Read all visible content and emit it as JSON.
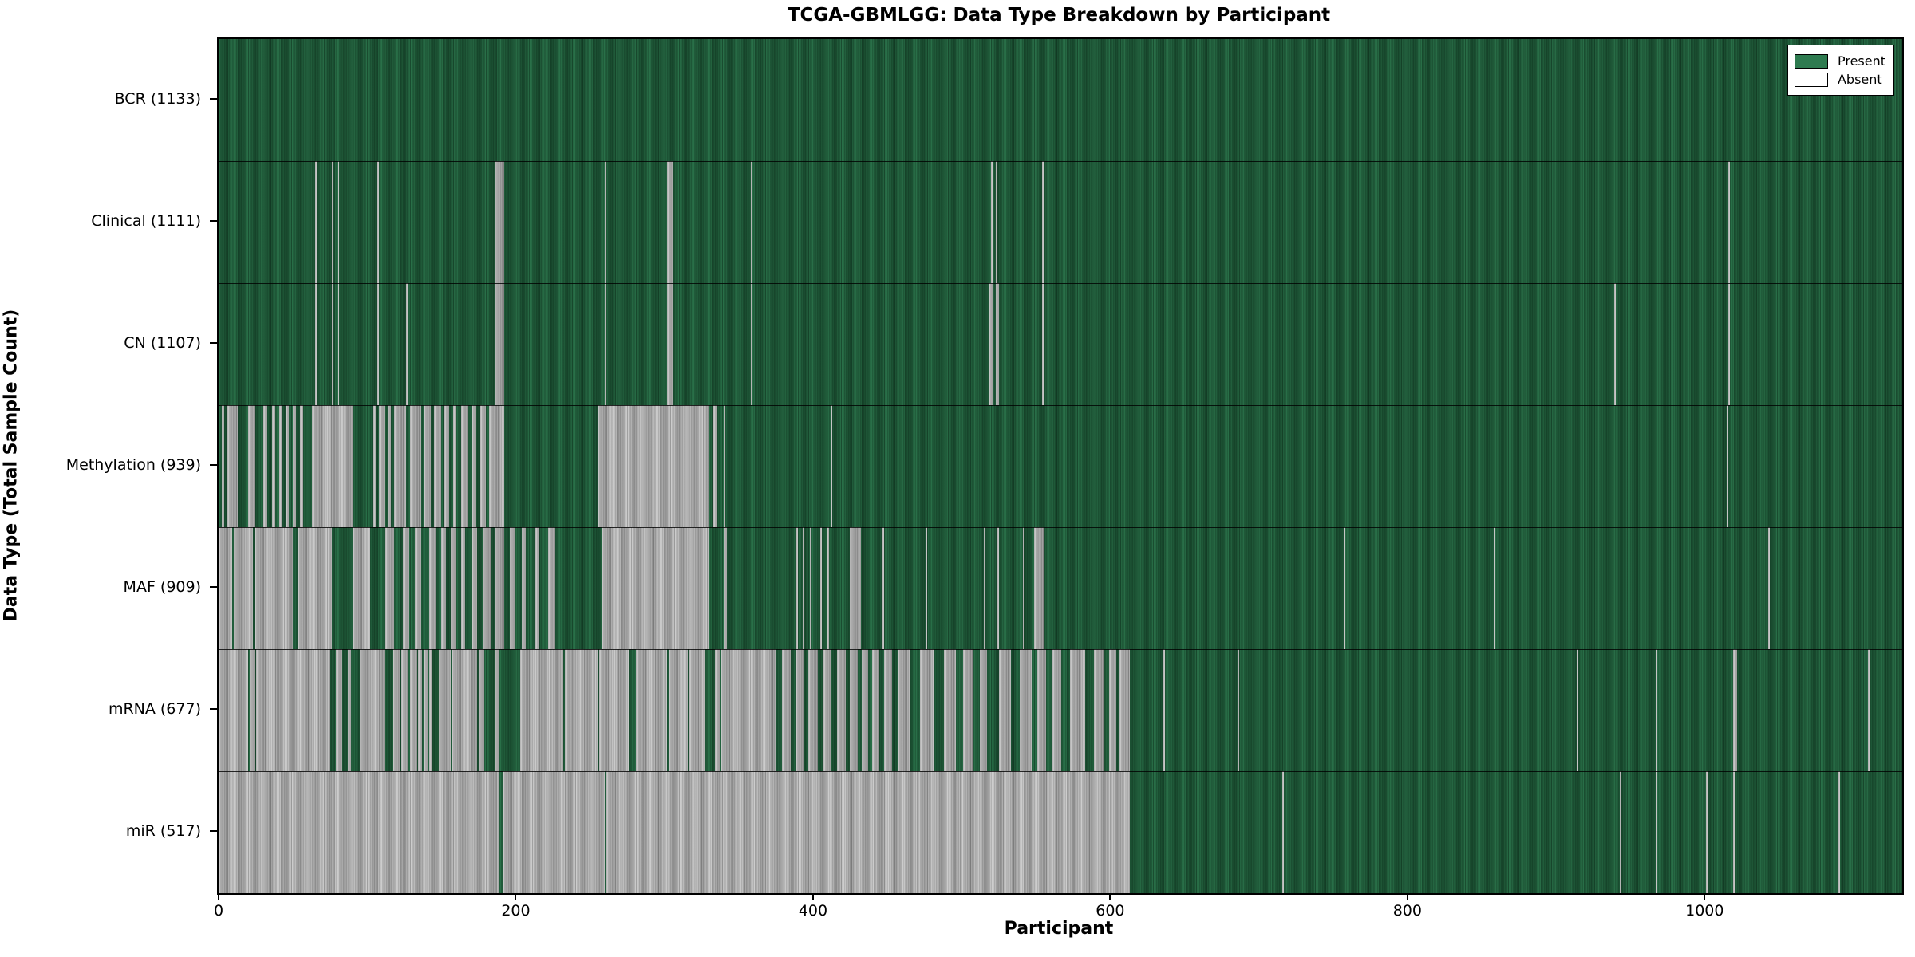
{
  "title": "TCGA-GBMLGG: Data Type Breakdown by Participant",
  "xlabel": "Participant",
  "ylabel": "Data Type (Total Sample Count)",
  "legend": [
    {
      "label": "Present",
      "color": "#2e7b50"
    },
    {
      "label": "Absent",
      "color": "#ffffff"
    }
  ],
  "colors": {
    "present": "#2e7b50",
    "present_edge": "#123a24",
    "absent": "#dedede",
    "absent_edge": "#a9a9a9",
    "axis_border": "#000000"
  },
  "chart_data": {
    "type": "heatmap",
    "title": "TCGA-GBMLGG: Data Type Breakdown by Participant",
    "xlabel": "Participant",
    "ylabel": "Data Type (Total Sample Count)",
    "legend_entries": [
      "Present",
      "Absent"
    ],
    "legend_position": "upper right",
    "n_participants": 1133,
    "xlim": [
      0,
      1133
    ],
    "x_ticks": [
      0,
      200,
      400,
      600,
      800,
      1000
    ],
    "grid": false,
    "rows": [
      {
        "label": "BCR (1133)",
        "data_type": "BCR",
        "present_count": 1133,
        "absent_ranges": []
      },
      {
        "label": "Clinical (1111)",
        "data_type": "Clinical",
        "present_count": 1111,
        "absent_ranges": [
          [
            61,
            62
          ],
          [
            65,
            66
          ],
          [
            76,
            77
          ],
          [
            80,
            81
          ],
          [
            98,
            99
          ],
          [
            107,
            108
          ],
          [
            186,
            192
          ],
          [
            260,
            261
          ],
          [
            302,
            306
          ],
          [
            358,
            359
          ],
          [
            520,
            521
          ],
          [
            523,
            524
          ],
          [
            554,
            555
          ],
          [
            1016,
            1017
          ]
        ]
      },
      {
        "label": "CN (1107)",
        "data_type": "CN",
        "present_count": 1107,
        "absent_ranges": [
          [
            65,
            66
          ],
          [
            76,
            77
          ],
          [
            80,
            81
          ],
          [
            98,
            99
          ],
          [
            107,
            108
          ],
          [
            126,
            127
          ],
          [
            186,
            192
          ],
          [
            260,
            261
          ],
          [
            302,
            306
          ],
          [
            358,
            359
          ],
          [
            518,
            521
          ],
          [
            523,
            525
          ],
          [
            554,
            555
          ],
          [
            939,
            940
          ],
          [
            1016,
            1017
          ]
        ]
      },
      {
        "label": "Methylation (939)",
        "data_type": "Methylation",
        "present_count": 939,
        "absent_ranges": [
          [
            2,
            4
          ],
          [
            6,
            13
          ],
          [
            20,
            24
          ],
          [
            30,
            33
          ],
          [
            36,
            38
          ],
          [
            41,
            43
          ],
          [
            45,
            47
          ],
          [
            50,
            52
          ],
          [
            55,
            57
          ],
          [
            63,
            91
          ],
          [
            104,
            106
          ],
          [
            108,
            112
          ],
          [
            114,
            116
          ],
          [
            118,
            126
          ],
          [
            129,
            136
          ],
          [
            138,
            143
          ],
          [
            145,
            150
          ],
          [
            152,
            155
          ],
          [
            158,
            160
          ],
          [
            163,
            168
          ],
          [
            170,
            173
          ],
          [
            176,
            180
          ],
          [
            182,
            192
          ],
          [
            255,
            330
          ],
          [
            333,
            335
          ],
          [
            340,
            341
          ],
          [
            412,
            413
          ],
          [
            1015,
            1016
          ]
        ]
      },
      {
        "label": "MAF (909)",
        "data_type": "MAF",
        "present_count": 909,
        "absent_ranges": [
          [
            0,
            9
          ],
          [
            10,
            23
          ],
          [
            24,
            50
          ],
          [
            53,
            76
          ],
          [
            90,
            102
          ],
          [
            112,
            118
          ],
          [
            124,
            128
          ],
          [
            132,
            136
          ],
          [
            142,
            146
          ],
          [
            150,
            153
          ],
          [
            156,
            160
          ],
          [
            163,
            166
          ],
          [
            170,
            174
          ],
          [
            178,
            183
          ],
          [
            186,
            192
          ],
          [
            196,
            199
          ],
          [
            204,
            207
          ],
          [
            213,
            216
          ],
          [
            222,
            226
          ],
          [
            258,
            330
          ],
          [
            340,
            342
          ],
          [
            389,
            390
          ],
          [
            393,
            394
          ],
          [
            398,
            399
          ],
          [
            405,
            406
          ],
          [
            409,
            411
          ],
          [
            425,
            432
          ],
          [
            447,
            448
          ],
          [
            476,
            477
          ],
          [
            515,
            516
          ],
          [
            524,
            525
          ],
          [
            541,
            542
          ],
          [
            549,
            555
          ],
          [
            757,
            758
          ],
          [
            858,
            859
          ],
          [
            1043,
            1044
          ]
        ]
      },
      {
        "label": "mRNA (677)",
        "data_type": "mRNA",
        "present_count": 677,
        "absent_ranges": [
          [
            0,
            20
          ],
          [
            21,
            24
          ],
          [
            25,
            75
          ],
          [
            79,
            83
          ],
          [
            87,
            89
          ],
          [
            95,
            112
          ],
          [
            117,
            122
          ],
          [
            123,
            127
          ],
          [
            129,
            133
          ],
          [
            134,
            137
          ],
          [
            138,
            141
          ],
          [
            142,
            144
          ],
          [
            148,
            156
          ],
          [
            157,
            174
          ],
          [
            175,
            179
          ],
          [
            186,
            189
          ],
          [
            203,
            232
          ],
          [
            233,
            255
          ],
          [
            256,
            276
          ],
          [
            281,
            302
          ],
          [
            303,
            316
          ],
          [
            317,
            327
          ],
          [
            334,
            337
          ],
          [
            338,
            375
          ],
          [
            379,
            385
          ],
          [
            388,
            394
          ],
          [
            397,
            403
          ],
          [
            407,
            412
          ],
          [
            416,
            422
          ],
          [
            425,
            430
          ],
          [
            433,
            437
          ],
          [
            440,
            444
          ],
          [
            448,
            453
          ],
          [
            457,
            465
          ],
          [
            472,
            481
          ],
          [
            488,
            496
          ],
          [
            501,
            508
          ],
          [
            512,
            517
          ],
          [
            525,
            533
          ],
          [
            539,
            547
          ],
          [
            551,
            557
          ],
          [
            561,
            567
          ],
          [
            573,
            583
          ],
          [
            589,
            596
          ],
          [
            599,
            604
          ],
          [
            606,
            613
          ],
          [
            636,
            637
          ],
          [
            686,
            687
          ],
          [
            914,
            915
          ],
          [
            967,
            968
          ],
          [
            1019,
            1022
          ],
          [
            1110,
            1111
          ]
        ]
      },
      {
        "label": "miR (517)",
        "data_type": "miR",
        "present_count": 517,
        "absent_ranges": [
          [
            0,
            189
          ],
          [
            191,
            260
          ],
          [
            261,
            613
          ],
          [
            664,
            665
          ],
          [
            716,
            717
          ],
          [
            943,
            944
          ],
          [
            967,
            968
          ],
          [
            1001,
            1002
          ],
          [
            1019,
            1021
          ],
          [
            1090,
            1091
          ]
        ]
      }
    ]
  }
}
